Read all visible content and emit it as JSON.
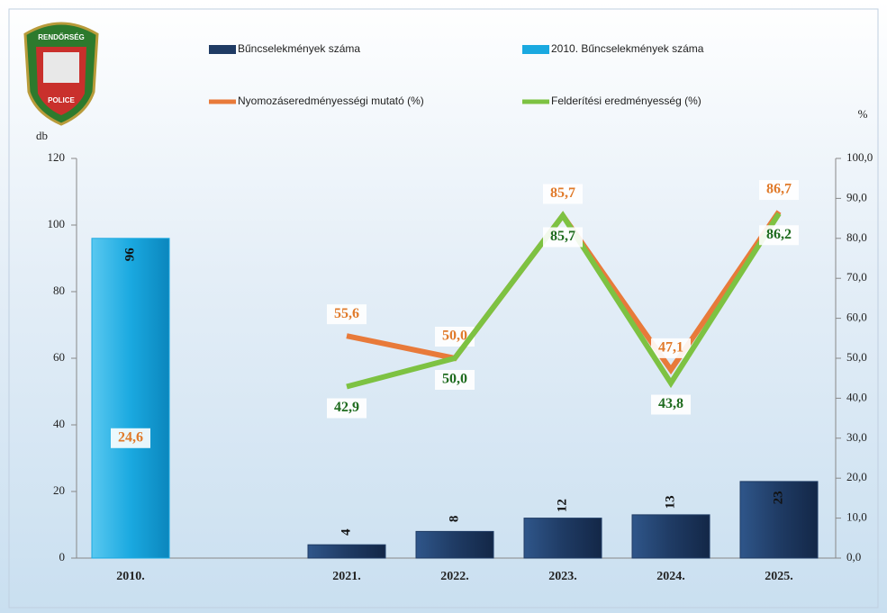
{
  "logo": {
    "top": "RENDŐRSÉG",
    "bottom": "POLICE"
  },
  "chart_data": {
    "type": "bar-line",
    "y_label": "db",
    "y2_label": "%",
    "categories": [
      "2010.",
      null,
      "2021.",
      "2022.",
      "2023.",
      "2024.",
      "2025."
    ],
    "series": [
      {
        "name": "Bűncselekmények száma",
        "type": "bar",
        "color": "#1f3b64",
        "values": [
          null,
          null,
          4,
          8,
          12,
          13,
          23
        ]
      },
      {
        "name": "2010. Bűncselekmények száma",
        "type": "bar",
        "color": "#1aa9e0",
        "values": [
          96,
          null,
          null,
          null,
          null,
          null,
          null
        ]
      },
      {
        "name": "Nyomozáseredményességi mutató (%)",
        "type": "line",
        "axis": "y2",
        "color": "#e87a3a",
        "label_color": "#e07a2a",
        "values": [
          24.6,
          null,
          55.6,
          50.0,
          85.7,
          47.1,
          86.7
        ],
        "value_labels": [
          "24,6",
          null,
          "55,6",
          "50,0",
          "85,7",
          "47,1",
          "86,7"
        ]
      },
      {
        "name": "Felderítési eredményesség (%)",
        "type": "line",
        "axis": "y2",
        "color": "#7dc242",
        "label_color": "#1e6b1e",
        "values": [
          null,
          null,
          42.9,
          50.0,
          85.7,
          43.8,
          86.2
        ],
        "value_labels": [
          null,
          null,
          "42,9",
          "50,0",
          "85,7",
          "43,8",
          "86,2"
        ]
      }
    ],
    "ylim": [
      0,
      120
    ],
    "yticks": [
      0,
      20,
      40,
      60,
      80,
      100,
      120
    ],
    "y2lim": [
      0,
      100
    ],
    "y2ticks": [
      {
        "value": 0,
        "label": "0,0"
      },
      {
        "value": 10,
        "label": "10,0"
      },
      {
        "value": 20,
        "label": "20,0"
      },
      {
        "value": 30,
        "label": "30,0"
      },
      {
        "value": 40,
        "label": "40,0"
      },
      {
        "value": 50,
        "label": "50,0"
      },
      {
        "value": 60,
        "label": "60,0"
      },
      {
        "value": 70,
        "label": "70,0"
      },
      {
        "value": 80,
        "label": "80,0"
      },
      {
        "value": 90,
        "label": "90,0"
      },
      {
        "value": 100,
        "label": "100,0"
      }
    ],
    "legend": "top"
  }
}
